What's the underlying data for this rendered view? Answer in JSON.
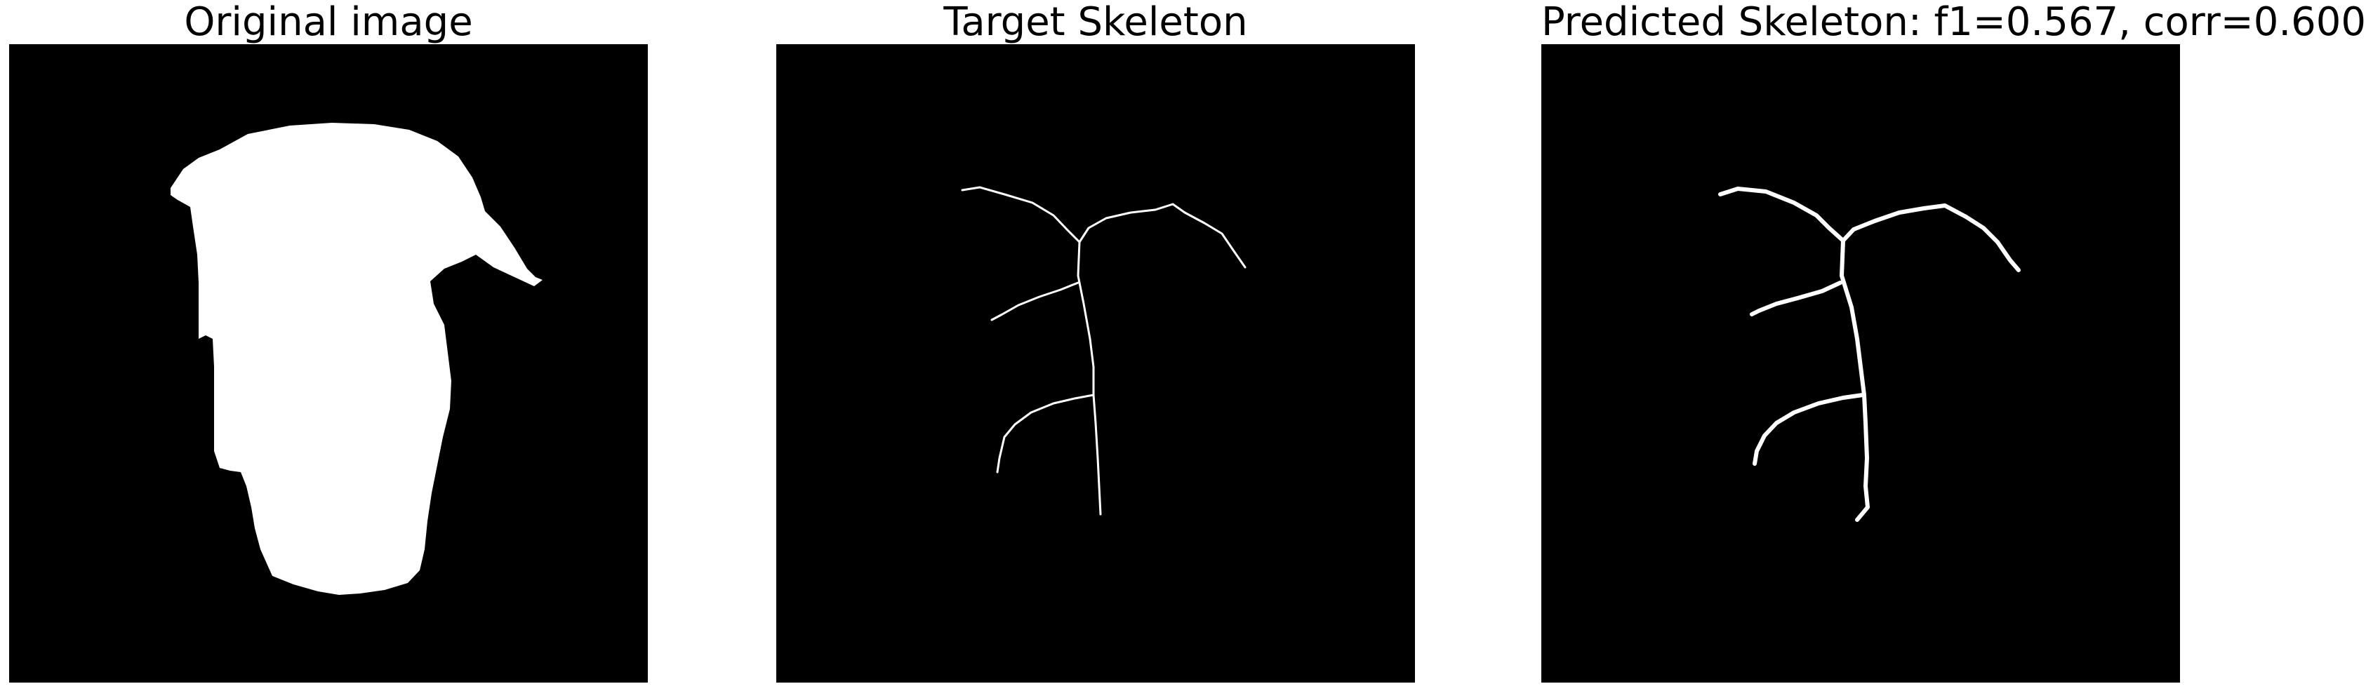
{
  "figure": {
    "background_color": "#ffffff",
    "panels": [
      {
        "title": "Original image",
        "image_kind": "binary-mask",
        "foreground_color": "#ffffff",
        "background_color": "#000000"
      },
      {
        "title": "Target Skeleton",
        "image_kind": "skeleton",
        "foreground_color": "#ffffff",
        "background_color": "#000000"
      },
      {
        "title": "Predicted Skeleton: f1=0.567, corr=0.600",
        "image_kind": "skeleton",
        "foreground_color": "#ffffff",
        "background_color": "#000000",
        "metrics": {
          "f1": 0.567,
          "corr": 0.6
        }
      }
    ]
  }
}
